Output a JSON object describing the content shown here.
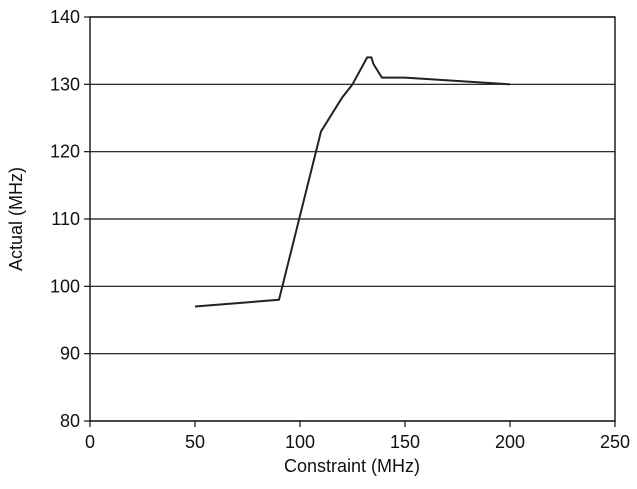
{
  "chart_data": {
    "type": "line",
    "x_label": "Constraint (MHz)",
    "y_label": "Actual (MHz)",
    "x": [
      50,
      90,
      110,
      120,
      125,
      132,
      134,
      135,
      139,
      150,
      200
    ],
    "series": [
      {
        "name": "Actual",
        "color": "#222222",
        "values": [
          97,
          98,
          123,
          128,
          130,
          134,
          134,
          133,
          131,
          131,
          130
        ]
      }
    ],
    "xlim": [
      0,
      250
    ],
    "xticks": [
      0,
      50,
      100,
      150,
      200,
      250
    ],
    "ylim": [
      80,
      140
    ],
    "yticks": [
      80,
      90,
      100,
      110,
      120,
      130,
      140
    ],
    "grid": true
  }
}
